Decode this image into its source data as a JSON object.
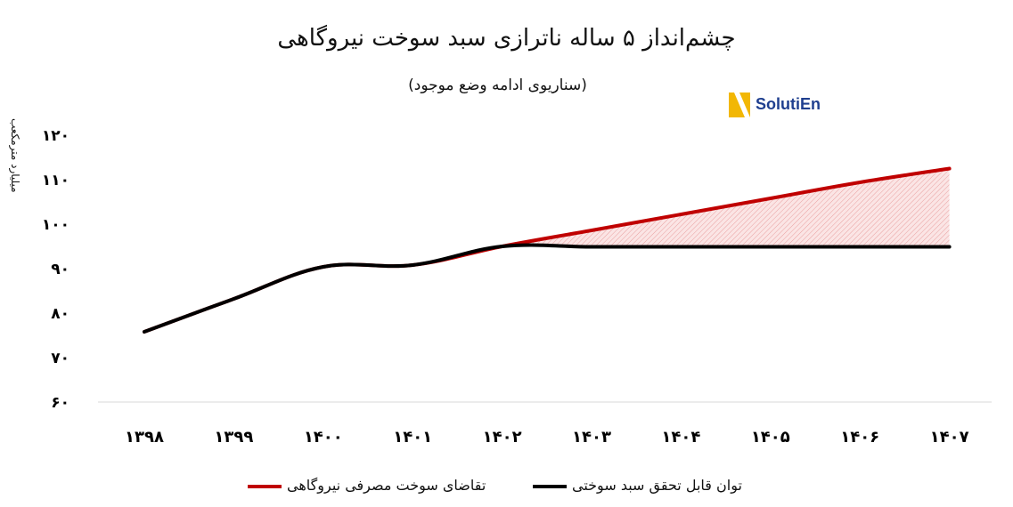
{
  "title": "چشم‌انداز ۵ ساله ناترازی سبد سوخت نیروگاهی",
  "subtitle": "(سناریوی ادامه وضع موجود)",
  "logo_text": "SolutiEn",
  "colors": {
    "demand": "#c00000",
    "supply": "#000000",
    "logo_accent": "#f2b705",
    "logo_text": "#1f3f8f"
  },
  "legend": [
    {
      "label": "تقاضای سوخت مصرفی نیروگاهی",
      "color": "#c00000"
    },
    {
      "label": "توان قابل تحقق سبد سوختی",
      "color": "#000000"
    }
  ],
  "chart_data": {
    "type": "line",
    "title": "چشم‌انداز ۵ ساله ناترازی سبد سوخت نیروگاهی",
    "subtitle": "(سناریوی ادامه وضع موجود)",
    "ylabel": "میلیارد مترمکعب",
    "ylim": [
      60,
      120
    ],
    "yticks": [
      60,
      70,
      80,
      90,
      100,
      110,
      120
    ],
    "ytick_labels": [
      "۶۰",
      "۷۰",
      "۸۰",
      "۹۰",
      "۱۰۰",
      "۱۱۰",
      "۱۲۰"
    ],
    "x": [
      1398,
      1399,
      1400,
      1401,
      1402,
      1403,
      1404,
      1405,
      1406,
      1407
    ],
    "xtick_labels": [
      "۱۳۹۸",
      "۱۳۹۹",
      "۱۴۰۰",
      "۱۴۰۱",
      "۱۴۰۲",
      "۱۴۰۳",
      "۱۴۰۴",
      "۱۴۰۵",
      "۱۴۰۶",
      "۱۴۰۷"
    ],
    "grid": false,
    "legend_position": "bottom",
    "shaded_gap": "between series after 1402",
    "series": [
      {
        "name": "تقاضای سوخت مصرفی نیروگاهی",
        "color": "#c00000",
        "values": [
          75.8,
          83.2,
          90.4,
          90.8,
          95.0,
          98.6,
          102.2,
          105.8,
          109.4,
          112.5
        ]
      },
      {
        "name": "توان قابل تحقق سبد سوختی",
        "color": "#000000",
        "values": [
          75.8,
          83.2,
          90.4,
          90.8,
          95.0,
          94.9,
          94.9,
          94.9,
          94.9,
          94.9
        ]
      }
    ]
  }
}
